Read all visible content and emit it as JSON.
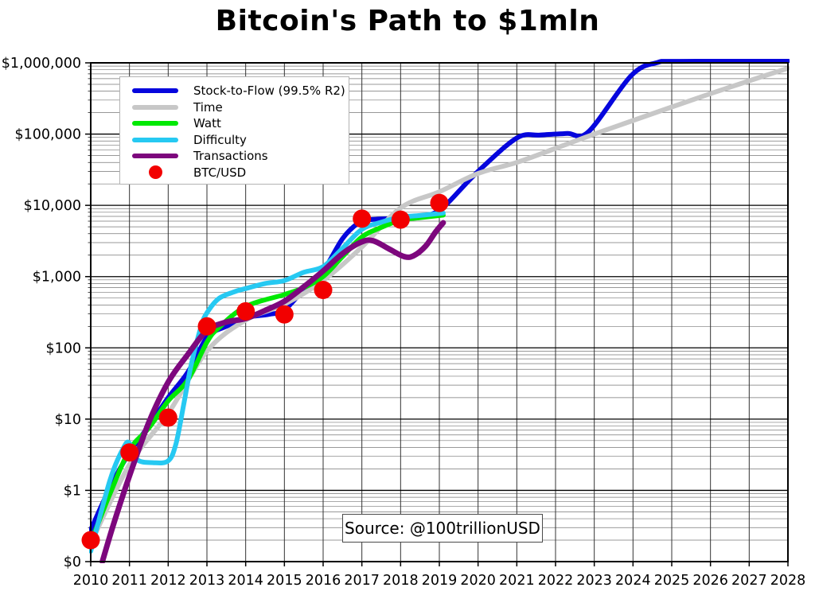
{
  "title": "Bitcoin's Path to $1mln",
  "source_label": "Source: @100trillionUSD",
  "colors": {
    "background": "#ffffff",
    "spine": "#000000",
    "grid_major": "#000000",
    "grid_minor": "#777777",
    "grid_vertical": "#333333",
    "legend_border": "#b3b3b3"
  },
  "chart_data": {
    "type": "line",
    "title": "Bitcoin's Path to $1mln",
    "annotation": "Source: @100trillionUSD",
    "grid": {
      "major": true,
      "minor": true
    },
    "legend_position": "upper-left",
    "x_axis": {
      "min": 2010,
      "max": 2028,
      "tick_step": 1,
      "tick_labels": [
        "2010",
        "2011",
        "2012",
        "2013",
        "2014",
        "2015",
        "2016",
        "2017",
        "2018",
        "2019",
        "2020",
        "2021",
        "2022",
        "2023",
        "2024",
        "2025",
        "2026",
        "2027",
        "2028"
      ]
    },
    "y_axis": {
      "scale": "log",
      "min": 0.1,
      "max": 1000000,
      "tick_values": [
        0.1,
        1,
        10,
        100,
        1000,
        10000,
        100000,
        1000000
      ],
      "tick_labels": [
        "$0",
        "$1",
        "$10",
        "$100",
        "$1,000",
        "$10,000",
        "$100,000",
        "$1,000,000"
      ]
    },
    "series": [
      {
        "name": "Stock-to-Flow (99.5% R2)",
        "color": "#0606dd",
        "type": "line",
        "width": 6,
        "points": [
          [
            2010.0,
            0.28
          ],
          [
            2010.5,
            1.1
          ],
          [
            2011.0,
            3.4
          ],
          [
            2011.5,
            8.0
          ],
          [
            2012.0,
            20
          ],
          [
            2012.5,
            45
          ],
          [
            2012.9,
            115
          ],
          [
            2013.1,
            160
          ],
          [
            2013.5,
            200
          ],
          [
            2014.0,
            265
          ],
          [
            2014.6,
            295
          ],
          [
            2015.0,
            340
          ],
          [
            2015.5,
            660
          ],
          [
            2016.0,
            1200
          ],
          [
            2016.5,
            3400
          ],
          [
            2016.9,
            5600
          ],
          [
            2017.2,
            6300
          ],
          [
            2018.0,
            6600
          ],
          [
            2018.6,
            7000
          ],
          [
            2019.0,
            8500
          ],
          [
            2019.3,
            12000
          ],
          [
            2020.0,
            30000
          ],
          [
            2021.0,
            88000
          ],
          [
            2021.6,
            97000
          ],
          [
            2022.3,
            102000
          ],
          [
            2022.85,
            108000
          ],
          [
            2023.95,
            660000
          ],
          [
            2024.6,
            1000000
          ],
          [
            2025.2,
            1050000
          ],
          [
            2028.0,
            1060000
          ]
        ]
      },
      {
        "name": "Time",
        "color": "#c7c7c7",
        "type": "line",
        "width": 6,
        "points": [
          [
            2010.0,
            0.18
          ],
          [
            2011.0,
            2.3
          ],
          [
            2012.0,
            12
          ],
          [
            2013.0,
            90
          ],
          [
            2014.0,
            245
          ],
          [
            2015.0,
            410
          ],
          [
            2016.0,
            880
          ],
          [
            2017.0,
            2600
          ],
          [
            2018.0,
            9200
          ],
          [
            2019.0,
            15500
          ],
          [
            2020.0,
            28000
          ],
          [
            2021.0,
            40000
          ],
          [
            2022.0,
            63000
          ],
          [
            2023.0,
            100000
          ],
          [
            2024.0,
            155000
          ],
          [
            2025.0,
            240000
          ],
          [
            2026.0,
            370000
          ],
          [
            2027.0,
            560000
          ],
          [
            2028.0,
            840000
          ]
        ]
      },
      {
        "name": "Watt",
        "color": "#00e903",
        "type": "line",
        "width": 6,
        "points": [
          [
            2010.05,
            0.22
          ],
          [
            2010.5,
            0.9
          ],
          [
            2011.0,
            3.7
          ],
          [
            2011.5,
            7.5
          ],
          [
            2012.0,
            18
          ],
          [
            2012.5,
            35
          ],
          [
            2013.0,
            120
          ],
          [
            2013.3,
            190
          ],
          [
            2014.0,
            380
          ],
          [
            2015.0,
            560
          ],
          [
            2015.5,
            700
          ],
          [
            2016.0,
            1000
          ],
          [
            2016.5,
            1900
          ],
          [
            2017.0,
            3600
          ],
          [
            2017.5,
            4900
          ],
          [
            2018.0,
            6200
          ],
          [
            2018.5,
            6700
          ],
          [
            2019.1,
            7300
          ]
        ]
      },
      {
        "name": "Difficulty",
        "color": "#26c9f2",
        "type": "line",
        "width": 6,
        "points": [
          [
            2010.0,
            0.14
          ],
          [
            2010.5,
            1.4
          ],
          [
            2010.85,
            4.0
          ],
          [
            2011.0,
            4.6
          ],
          [
            2011.2,
            2.7
          ],
          [
            2011.6,
            2.45
          ],
          [
            2012.0,
            2.6
          ],
          [
            2012.2,
            4.5
          ],
          [
            2012.4,
            16
          ],
          [
            2012.6,
            60
          ],
          [
            2012.85,
            200
          ],
          [
            2013.0,
            310
          ],
          [
            2013.3,
            490
          ],
          [
            2013.7,
            610
          ],
          [
            2014.0,
            680
          ],
          [
            2014.5,
            800
          ],
          [
            2015.0,
            880
          ],
          [
            2015.5,
            1150
          ],
          [
            2016.0,
            1380
          ],
          [
            2016.5,
            2500
          ],
          [
            2017.0,
            4600
          ],
          [
            2017.5,
            5800
          ],
          [
            2018.0,
            6800
          ],
          [
            2018.5,
            7200
          ],
          [
            2019.1,
            7800
          ]
        ]
      },
      {
        "name": "Transactions",
        "color": "#7d077d",
        "type": "line",
        "width": 7,
        "points": [
          [
            2010.3,
            0.1
          ],
          [
            2010.6,
            0.35
          ],
          [
            2011.0,
            1.6
          ],
          [
            2011.5,
            9.0
          ],
          [
            2012.0,
            33
          ],
          [
            2012.5,
            80
          ],
          [
            2013.0,
            175
          ],
          [
            2013.5,
            230
          ],
          [
            2014.0,
            258
          ],
          [
            2014.5,
            335
          ],
          [
            2015.0,
            450
          ],
          [
            2015.5,
            720
          ],
          [
            2016.0,
            1200
          ],
          [
            2016.5,
            2100
          ],
          [
            2017.0,
            3080
          ],
          [
            2017.3,
            3170
          ],
          [
            2017.7,
            2450
          ],
          [
            2018.1,
            1900
          ],
          [
            2018.35,
            1980
          ],
          [
            2018.65,
            2700
          ],
          [
            2018.9,
            4200
          ],
          [
            2019.1,
            5700
          ]
        ]
      },
      {
        "name": "BTC/USD",
        "color": "#f20000",
        "type": "scatter",
        "marker_radius": 11.5,
        "points": [
          [
            2010.0,
            0.2
          ],
          [
            2011.0,
            3.4
          ],
          [
            2012.0,
            10.5
          ],
          [
            2013.0,
            200
          ],
          [
            2014.0,
            325
          ],
          [
            2015.0,
            295
          ],
          [
            2016.0,
            650
          ],
          [
            2017.0,
            6500
          ],
          [
            2018.0,
            6300
          ],
          [
            2019.0,
            10800
          ]
        ]
      }
    ]
  }
}
